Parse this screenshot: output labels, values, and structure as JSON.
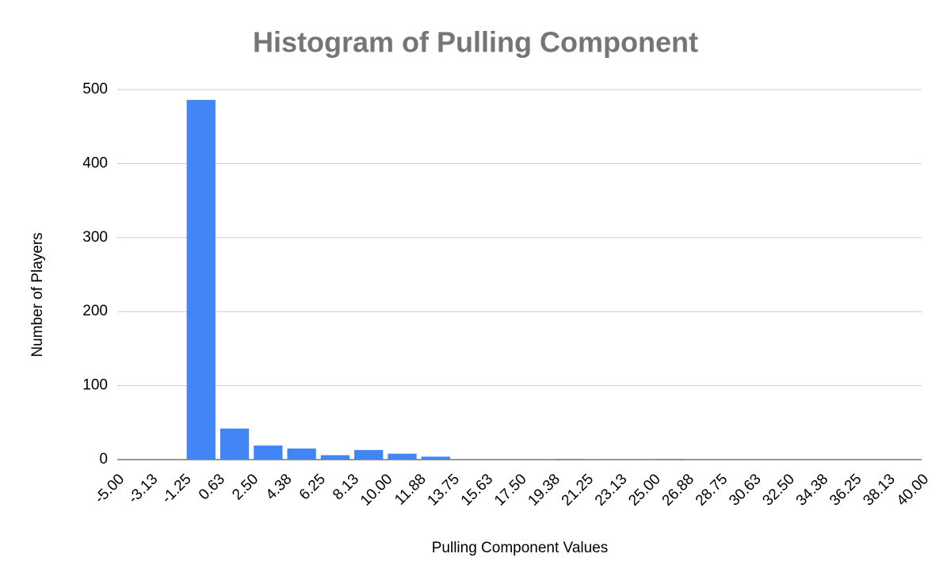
{
  "chart_data": {
    "type": "histogram",
    "title": "Histogram of Pulling Component",
    "x_label": "Pulling Component Values",
    "y_label": "Number of Players",
    "bins": [
      -5,
      -3.125,
      -1.25,
      0.625,
      2.5,
      4.375,
      6.25,
      8.125,
      10,
      11.875,
      13.75,
      15.625,
      17.5,
      19.375,
      21.25,
      23.125,
      25,
      26.875,
      28.75,
      30.625,
      32.5,
      34.375,
      36.25,
      38.125,
      40
    ],
    "values": [
      0,
      0,
      486,
      42,
      19,
      15,
      6,
      13,
      8,
      4,
      0,
      0,
      0,
      1,
      0,
      0,
      1,
      0,
      0,
      0,
      0,
      0,
      0,
      0
    ],
    "color": "#4285f4",
    "xlim": [
      -5,
      40
    ],
    "xticks": [
      {
        "value": -5,
        "label": "-5.00"
      },
      {
        "value": -3.125,
        "label": "-3.13"
      },
      {
        "value": -1.25,
        "label": "-1.25"
      },
      {
        "value": 0.625,
        "label": "0.63"
      },
      {
        "value": 2.5,
        "label": "2.50"
      },
      {
        "value": 4.375,
        "label": "4.38"
      },
      {
        "value": 6.25,
        "label": "6.25"
      },
      {
        "value": 8.125,
        "label": "8.13"
      },
      {
        "value": 10,
        "label": "10.00"
      },
      {
        "value": 11.875,
        "label": "11.88"
      },
      {
        "value": 13.75,
        "label": "13.75"
      },
      {
        "value": 15.625,
        "label": "15.63"
      },
      {
        "value": 17.5,
        "label": "17.50"
      },
      {
        "value": 19.375,
        "label": "19.38"
      },
      {
        "value": 21.25,
        "label": "21.25"
      },
      {
        "value": 23.125,
        "label": "23.13"
      },
      {
        "value": 25,
        "label": "25.00"
      },
      {
        "value": 26.875,
        "label": "26.88"
      },
      {
        "value": 28.75,
        "label": "28.75"
      },
      {
        "value": 30.625,
        "label": "30.63"
      },
      {
        "value": 32.5,
        "label": "32.50"
      },
      {
        "value": 34.375,
        "label": "34.38"
      },
      {
        "value": 36.25,
        "label": "36.25"
      },
      {
        "value": 38.125,
        "label": "38.13"
      },
      {
        "value": 40,
        "label": "40.00"
      }
    ],
    "ylim": [
      0,
      500
    ],
    "yticks": [
      0,
      100,
      200,
      300,
      400,
      500
    ],
    "grid": true
  }
}
